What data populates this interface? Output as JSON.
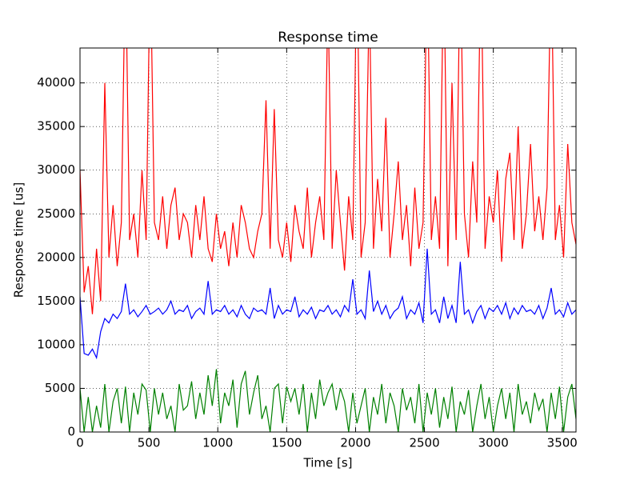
{
  "chart_data": {
    "type": "line",
    "title": "Response time",
    "xlabel": "Time [s]",
    "ylabel": "Response time [us]",
    "xlim": [
      0,
      3600
    ],
    "ylim": [
      0,
      44000
    ],
    "xticks": [
      0,
      500,
      1000,
      1500,
      2000,
      2500,
      3000,
      3500
    ],
    "yticks": [
      0,
      5000,
      10000,
      15000,
      20000,
      25000,
      30000,
      35000,
      40000
    ],
    "grid": true,
    "x": [
      0,
      30,
      60,
      90,
      120,
      150,
      180,
      210,
      240,
      270,
      300,
      330,
      360,
      390,
      420,
      450,
      480,
      510,
      540,
      570,
      600,
      630,
      660,
      690,
      720,
      750,
      780,
      810,
      840,
      870,
      900,
      930,
      960,
      990,
      1020,
      1050,
      1080,
      1110,
      1140,
      1170,
      1200,
      1230,
      1260,
      1290,
      1320,
      1350,
      1380,
      1410,
      1440,
      1470,
      1500,
      1530,
      1560,
      1590,
      1620,
      1650,
      1680,
      1710,
      1740,
      1770,
      1800,
      1830,
      1860,
      1890,
      1920,
      1950,
      1980,
      2010,
      2040,
      2070,
      2100,
      2130,
      2160,
      2190,
      2220,
      2250,
      2280,
      2310,
      2340,
      2370,
      2400,
      2430,
      2460,
      2490,
      2520,
      2550,
      2580,
      2610,
      2640,
      2670,
      2700,
      2730,
      2760,
      2790,
      2820,
      2850,
      2880,
      2910,
      2940,
      2970,
      3000,
      3030,
      3060,
      3090,
      3120,
      3150,
      3180,
      3210,
      3240,
      3270,
      3300,
      3330,
      3360,
      3390,
      3420,
      3450,
      3480,
      3510,
      3540,
      3570,
      3600
    ],
    "series": [
      {
        "color": "#ff0000",
        "values": [
          30000,
          16000,
          19000,
          13500,
          21000,
          15000,
          40000,
          20000,
          26000,
          19000,
          24000,
          55000,
          22000,
          25000,
          20000,
          30000,
          22000,
          55000,
          24000,
          22000,
          27000,
          21000,
          26000,
          28000,
          22000,
          25000,
          24000,
          20000,
          26000,
          22000,
          27000,
          21000,
          19500,
          25000,
          21000,
          23000,
          19000,
          24000,
          20000,
          26000,
          24000,
          21000,
          20000,
          23000,
          25000,
          38000,
          21000,
          37000,
          22000,
          20000,
          24000,
          19500,
          26000,
          23000,
          21000,
          28000,
          20000,
          24000,
          27000,
          22000,
          50000,
          21000,
          30000,
          24000,
          18500,
          27000,
          22000,
          55000,
          20000,
          24000,
          50000,
          21000,
          29000,
          23000,
          36000,
          20000,
          25000,
          31000,
          22000,
          26000,
          19000,
          28000,
          21000,
          24000,
          55000,
          22000,
          27000,
          21000,
          55000,
          19000,
          40000,
          22000,
          55000,
          25000,
          20000,
          31000,
          24000,
          55000,
          21000,
          27000,
          24000,
          30000,
          19500,
          29000,
          32000,
          22000,
          35000,
          21000,
          25000,
          33000,
          23000,
          27000,
          22000,
          28000,
          55000,
          22000,
          26000,
          20000,
          33000,
          24000,
          21500
        ]
      },
      {
        "color": "#0000ff",
        "values": [
          15500,
          9000,
          8800,
          9500,
          8500,
          11500,
          13000,
          12500,
          13500,
          13000,
          13800,
          17000,
          13500,
          14000,
          13200,
          13800,
          14500,
          13500,
          13800,
          14200,
          13500,
          14000,
          15000,
          13500,
          14000,
          13800,
          14500,
          13000,
          13800,
          14200,
          13500,
          17300,
          13500,
          14000,
          13800,
          14500,
          13500,
          14000,
          13200,
          14500,
          13500,
          13000,
          14200,
          13800,
          14000,
          13500,
          16500,
          13000,
          14500,
          13500,
          14000,
          13800,
          15500,
          13200,
          14000,
          13500,
          14300,
          13000,
          14000,
          13800,
          14500,
          13500,
          14000,
          13200,
          14500,
          13800,
          17500,
          13500,
          14000,
          13000,
          18500,
          13800,
          15000,
          13500,
          14500,
          13000,
          13800,
          14200,
          15500,
          13000,
          14000,
          13500,
          14800,
          12500,
          21000,
          13500,
          14000,
          12500,
          15500,
          13000,
          14500,
          12500,
          19500,
          13500,
          14000,
          12500,
          13800,
          14500,
          13000,
          14200,
          13800,
          14500,
          13500,
          14800,
          13000,
          14200,
          13500,
          14500,
          13800,
          14000,
          13500,
          14500,
          13000,
          14200,
          16500,
          13500,
          14000,
          13200,
          14800,
          13500,
          14000
        ]
      },
      {
        "color": "#008000",
        "values": [
          5000,
          0,
          4000,
          0,
          3000,
          500,
          5500,
          0,
          3500,
          5000,
          1000,
          5200,
          0,
          4500,
          2000,
          5500,
          4800,
          0,
          5000,
          2000,
          4500,
          1500,
          3000,
          0,
          5500,
          2500,
          3000,
          5800,
          1500,
          4500,
          2000,
          6500,
          3000,
          7200,
          1000,
          4500,
          3000,
          6000,
          500,
          5500,
          7000,
          2000,
          4500,
          6500,
          1500,
          3000,
          0,
          5000,
          5500,
          1000,
          5200,
          3500,
          5000,
          2000,
          5500,
          0,
          4500,
          1500,
          6000,
          3000,
          4500,
          5500,
          2500,
          5000,
          3500,
          0,
          4500,
          1000,
          3000,
          5000,
          0,
          4000,
          2000,
          5500,
          1000,
          4500,
          3000,
          0,
          5000,
          2500,
          4000,
          1000,
          5500,
          0,
          4500,
          2000,
          5000,
          500,
          4000,
          1500,
          5200,
          0,
          3500,
          2000,
          4800,
          0,
          3000,
          5500,
          1500,
          4000,
          0,
          3000,
          5000,
          1500,
          4500,
          0,
          5500,
          2000,
          3500,
          1000,
          4500,
          2500,
          3800,
          0,
          4500,
          1500,
          5200,
          0,
          4000,
          5500,
          1500
        ]
      }
    ]
  }
}
